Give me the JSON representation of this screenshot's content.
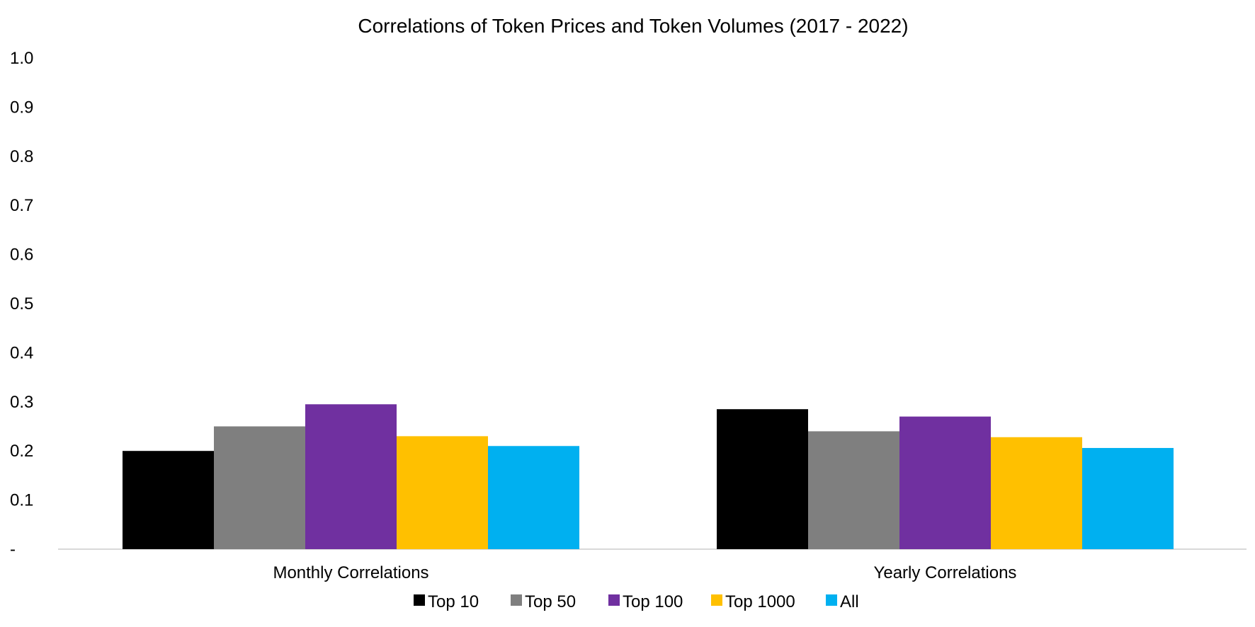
{
  "chart_data": {
    "type": "bar",
    "title": "Correlations of Token Prices and Token Volumes (2017 - 2022)",
    "xlabel": "",
    "ylabel": "",
    "categories": [
      "Monthly Correlations",
      "Yearly Correlations"
    ],
    "series": [
      {
        "name": "Top 10",
        "color": "#000000",
        "values": [
          0.2,
          0.285
        ]
      },
      {
        "name": "Top 50",
        "color": "#7f7f7f",
        "values": [
          0.25,
          0.24
        ]
      },
      {
        "name": "Top 100",
        "color": "#7030a0",
        "values": [
          0.295,
          0.27
        ]
      },
      {
        "name": "Top 1000",
        "color": "#ffc000",
        "values": [
          0.23,
          0.228
        ]
      },
      {
        "name": "All",
        "color": "#00b0f0",
        "values": [
          0.21,
          0.206
        ]
      }
    ],
    "ylim": [
      0,
      1.0
    ],
    "yticks": [
      0,
      0.1,
      0.2,
      0.3,
      0.4,
      0.5,
      0.6,
      0.7,
      0.8,
      0.9,
      1.0
    ],
    "ytick_labels": [
      "-",
      "0.1",
      "0.2",
      "0.3",
      "0.4",
      "0.5",
      "0.6",
      "0.7",
      "0.8",
      "0.9",
      "1.0"
    ],
    "grid": false,
    "legend_position": "bottom"
  }
}
